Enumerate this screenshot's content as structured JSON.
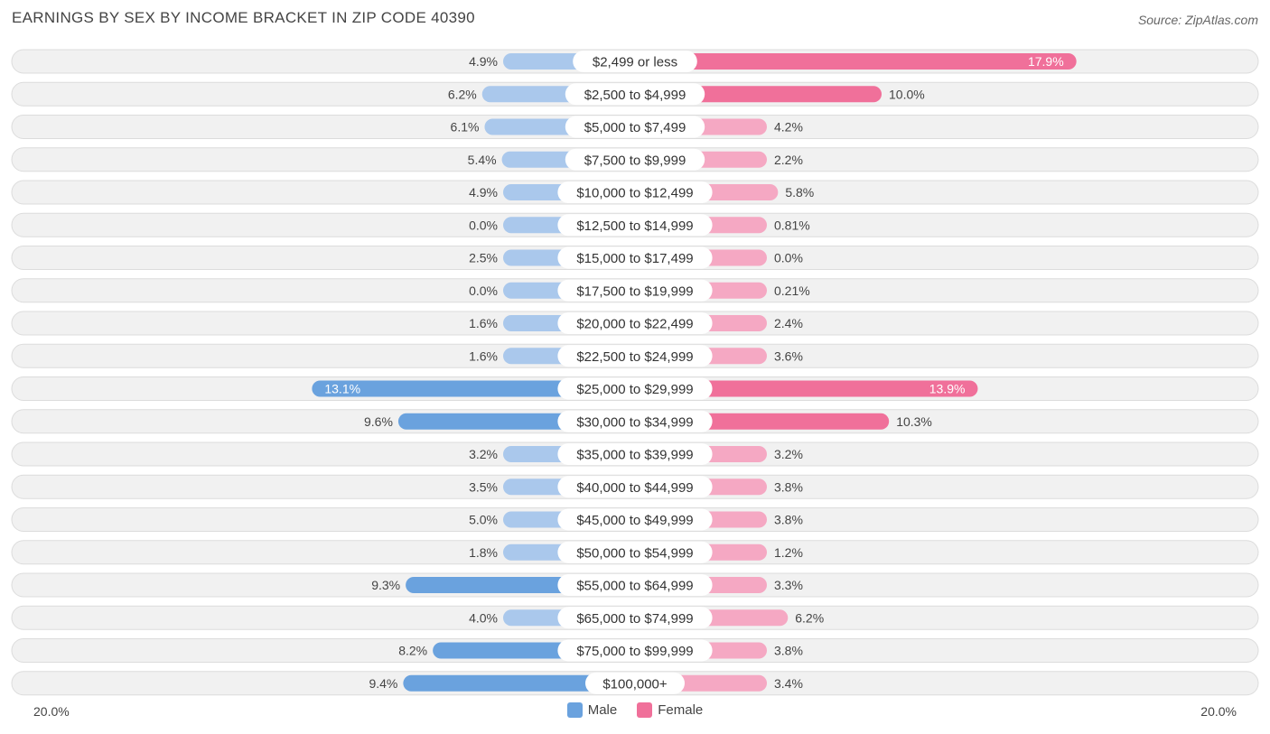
{
  "chart_data": {
    "type": "bar",
    "orientation": "horizontal-diverging",
    "title": "EARNINGS BY SEX BY INCOME BRACKET IN ZIP CODE 40390",
    "source": "Source: ZipAtlas.com",
    "categories": [
      "$2,499 or less",
      "$2,500 to $4,999",
      "$5,000 to $7,499",
      "$7,500 to $9,999",
      "$10,000 to $12,499",
      "$12,500 to $14,999",
      "$15,000 to $17,499",
      "$17,500 to $19,999",
      "$20,000 to $22,499",
      "$22,500 to $24,999",
      "$25,000 to $29,999",
      "$30,000 to $34,999",
      "$35,000 to $39,999",
      "$40,000 to $44,999",
      "$45,000 to $49,999",
      "$50,000 to $54,999",
      "$55,000 to $64,999",
      "$65,000 to $74,999",
      "$75,000 to $99,999",
      "$100,000+"
    ],
    "series": [
      {
        "name": "Male",
        "values": [
          4.9,
          6.2,
          6.1,
          5.4,
          4.9,
          0.0,
          2.5,
          0.0,
          1.6,
          1.6,
          13.1,
          9.6,
          3.2,
          3.5,
          5.0,
          1.8,
          9.3,
          4.0,
          8.2,
          9.4
        ],
        "labels": [
          "4.9%",
          "6.2%",
          "6.1%",
          "5.4%",
          "4.9%",
          "0.0%",
          "2.5%",
          "0.0%",
          "1.6%",
          "1.6%",
          "13.1%",
          "9.6%",
          "3.2%",
          "3.5%",
          "5.0%",
          "1.8%",
          "9.3%",
          "4.0%",
          "8.2%",
          "9.4%"
        ]
      },
      {
        "name": "Female",
        "values": [
          17.9,
          10.0,
          4.2,
          2.2,
          5.8,
          0.81,
          0.0,
          0.21,
          2.4,
          3.6,
          13.9,
          10.3,
          3.2,
          3.8,
          3.8,
          1.2,
          3.3,
          6.2,
          3.8,
          3.4
        ],
        "labels": [
          "17.9%",
          "10.0%",
          "4.2%",
          "2.2%",
          "5.8%",
          "0.81%",
          "0.0%",
          "0.21%",
          "2.4%",
          "3.6%",
          "13.9%",
          "10.3%",
          "3.2%",
          "3.8%",
          "3.8%",
          "1.2%",
          "3.3%",
          "6.2%",
          "3.8%",
          "3.4%"
        ]
      }
    ],
    "axis_max": 20.0,
    "axis_left_label": "20.0%",
    "axis_right_label": "20.0%",
    "colors": {
      "male_light": "#aac8ec",
      "male_dark": "#6aa2de",
      "female_light": "#f5a8c3",
      "female_dark": "#f0709a",
      "row_bg": "#f1f1f1",
      "row_border": "#dcdcdc"
    }
  },
  "legend": {
    "male_label": "Male",
    "female_label": "Female"
  }
}
